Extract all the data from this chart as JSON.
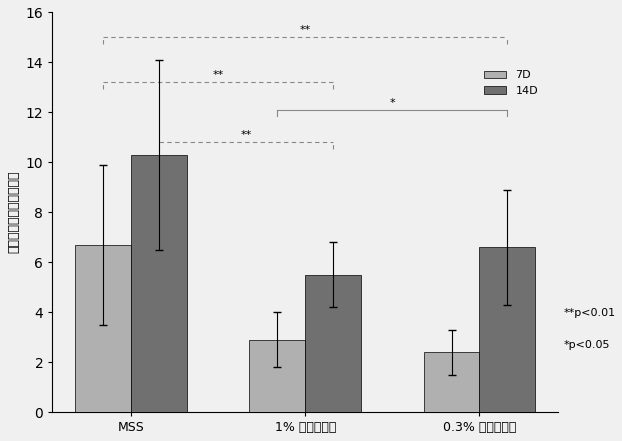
{
  "groups": [
    "MSS",
    "1% コラーゲン",
    "0.3% コラーゲン"
  ],
  "bar_7d": [
    6.7,
    2.9,
    2.4
  ],
  "bar_14d": [
    10.3,
    5.5,
    6.6
  ],
  "err_7d": [
    3.2,
    1.1,
    0.9
  ],
  "err_14d": [
    3.8,
    1.3,
    2.3
  ],
  "color_7d": "#b0b0b0",
  "color_14d": "#707070",
  "ylabel": "単位面積あたりの細胞数",
  "ylim": [
    0,
    16
  ],
  "yticks": [
    0,
    2,
    4,
    6,
    8,
    10,
    12,
    14,
    16
  ],
  "legend_7d": "7D",
  "legend_14d": "14D",
  "sig_label_01": "**p<0.01",
  "sig_label_05": "*p<0.05",
  "bar_width": 0.32,
  "background_color": "#f0f0f0",
  "bracket_color": "#888888",
  "bracket_lw": 0.8
}
